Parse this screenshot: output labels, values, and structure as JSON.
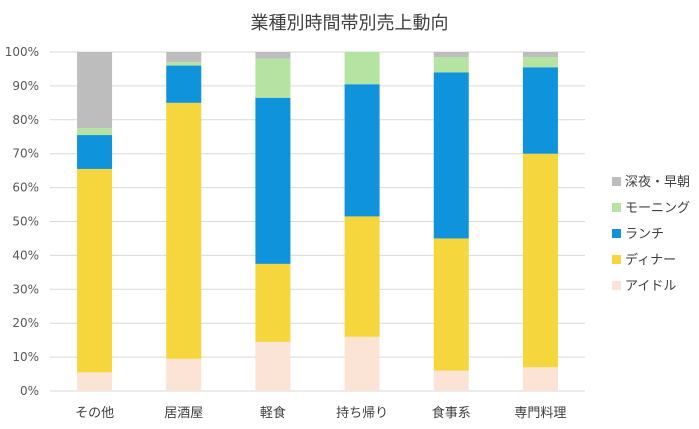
{
  "chart_data": {
    "type": "bar",
    "stacked": true,
    "title": "業種別時間帯別売上動向",
    "xlabel": "",
    "ylabel": "",
    "ylim": [
      0,
      100
    ],
    "y_ticks": [
      "0%",
      "10%",
      "20%",
      "30%",
      "40%",
      "50%",
      "60%",
      "70%",
      "80%",
      "90%",
      "100%"
    ],
    "categories": [
      "その他",
      "居酒屋",
      "軽食",
      "持ち帰り",
      "食事系",
      "専門料理"
    ],
    "grid": true,
    "legend_position": "right",
    "series": [
      {
        "name": "アイドル",
        "color": "#fbe3d6",
        "values": [
          5.5,
          9.5,
          14.5,
          16,
          6,
          7
        ]
      },
      {
        "name": "ディナー",
        "color": "#f5d63d",
        "values": [
          60,
          75.5,
          23,
          35.5,
          39,
          63
        ]
      },
      {
        "name": "ランチ",
        "color": "#0f94dc",
        "values": [
          10,
          11,
          49,
          39,
          49,
          25.5
        ]
      },
      {
        "name": "モーニング",
        "color": "#b5e3a1",
        "values": [
          2,
          1,
          11.5,
          9.5,
          4.5,
          3
        ]
      },
      {
        "name": "深夜・早朝",
        "color": "#bdbdbd",
        "values": [
          22.5,
          3,
          2,
          0,
          1.5,
          1.5
        ]
      }
    ]
  }
}
